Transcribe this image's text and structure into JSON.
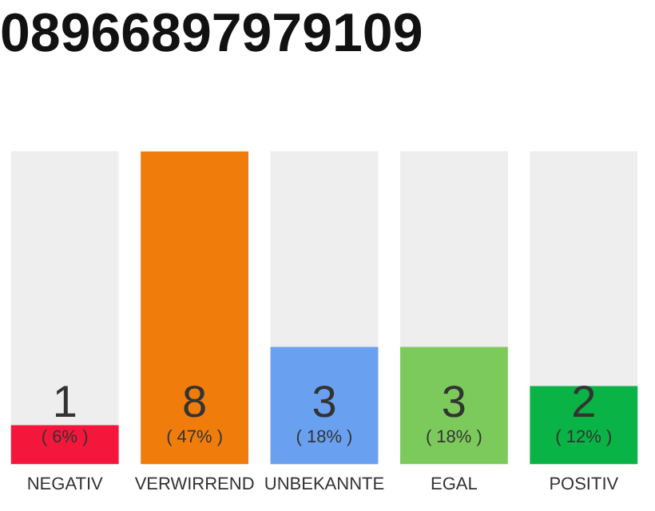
{
  "chart_data": {
    "type": "bar",
    "title": "08966897979109",
    "categories": [
      "NEGATIV",
      "VERWIRREND",
      "UNBEKANNTE",
      "EGAL",
      "POSITIV"
    ],
    "values": [
      1,
      8,
      3,
      3,
      2
    ],
    "colors": [
      "#f5163b",
      "#f07d0b",
      "#6aa0f0",
      "#7dca5c",
      "#0ab345"
    ],
    "ylim": [
      0,
      8
    ],
    "tick_labels": "x",
    "grid": false,
    "legend": false,
    "data_labels": true,
    "annotations": [
      "( 6% )",
      "( 47% )",
      "( 18% )",
      "( 18% )",
      "( 12% )"
    ]
  }
}
